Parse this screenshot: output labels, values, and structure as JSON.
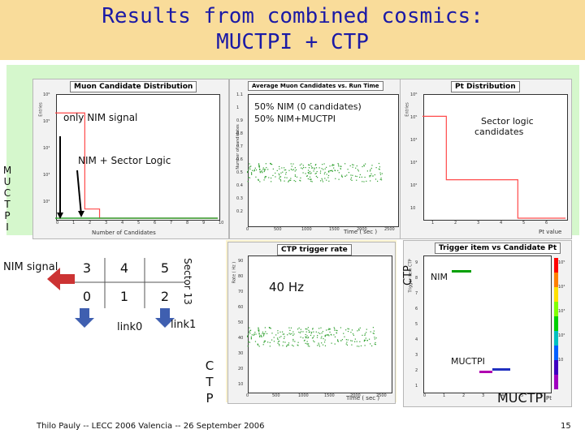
{
  "slide": {
    "title_line1": "Results from combined cosmics:",
    "title_line2": "MUCTPI + CTP",
    "footer": "Thilo Pauly -- LECC 2006 Valencia -- 26 September 2006",
    "page_number": "15"
  },
  "annotations": {
    "only_nim_signal": "only NIM signal",
    "nim_sector_logic": "NIM + Sector Logic",
    "muctpi_vertical": [
      "M",
      "U",
      "C",
      "T",
      "P",
      "I"
    ],
    "nim_signal": "NIM signal",
    "legend_line1": "50% NIM (0 candidates)",
    "legend_line2": "50% NIM+MUCTPI",
    "sector_logic_candidates_line1": "Sector logic",
    "sector_logic_candidates_line2": "candidates",
    "ctp_vertical": [
      "C",
      "T",
      "P"
    ],
    "ctp_rot": "CTP",
    "rate_40hz": "40 Hz",
    "nim": "NIM",
    "muctpi_small": "MUCTPI",
    "muctpi_big": "MUCTPI",
    "sector13": "Sector 13",
    "link0": "link0",
    "link1": "link1"
  },
  "sector_grid": {
    "top_row": [
      "3",
      "4",
      "5"
    ],
    "bottom_row": [
      "0",
      "1",
      "2"
    ]
  },
  "colors": {
    "title_band": "#f9dc9a",
    "title_text": "#1b1aa6",
    "green_area": "#d5f7cc",
    "yellow_area": "#fbf3d0",
    "arrow_red": "#cc3333",
    "arrow_blue": "#3f5fb0",
    "histogram": "#ff4a4a",
    "scatter": "#2fa02f"
  },
  "panels": {
    "muon_dist": {
      "title": "Muon Candidate Distribution",
      "ylabel": "Entries",
      "xlabel": "Number of Candidates",
      "xticks": [
        "0",
        "1",
        "2",
        "3",
        "4",
        "5",
        "6",
        "7",
        "8",
        "9",
        "10"
      ],
      "yticks": [
        "10⁶",
        "10⁵",
        "10⁴",
        "10³",
        "10²"
      ]
    },
    "avg_muon": {
      "title": "Average Muon Candidates vs. Run Time",
      "ylabel": "Number of candidates",
      "xlabel": "Time  ( sec )",
      "xticks": [
        "0",
        "500",
        "1000",
        "1500",
        "2000",
        "2500"
      ],
      "yticks": [
        "1.1",
        "1",
        "0.9",
        "0.8",
        "0.7",
        "0.6",
        "0.5",
        "0.4",
        "0.3",
        "0.2"
      ]
    },
    "pt_dist": {
      "title": "Pt Distribution",
      "ylabel": "Entries",
      "xlabel": "Pt value",
      "xticks": [
        "1",
        "2",
        "3",
        "4",
        "5",
        "6"
      ],
      "yticks": [
        "10⁶",
        "10⁵",
        "10⁴",
        "10³",
        "10²",
        "10"
      ]
    },
    "ctp_rate": {
      "title": "CTP trigger rate",
      "ylabel": "Rate ( Hz )",
      "xlabel": "Time  ( sec )",
      "xticks": [
        "0",
        "500",
        "1000",
        "1500",
        "2000",
        "2500"
      ],
      "yticks": [
        "90",
        "80",
        "70",
        "60",
        "50",
        "40",
        "30",
        "20",
        "10"
      ]
    },
    "trigger_item": {
      "title": "Trigger item vs Candidate Pt",
      "ylabel": "Trigger item CTP",
      "xlabel": "Pt",
      "xticks": [
        "0",
        "1",
        "2",
        "3",
        "4",
        "5",
        "6"
      ],
      "yticks": [
        "9",
        "8",
        "7",
        "6",
        "5",
        "4",
        "3",
        "2",
        "1"
      ],
      "zticks": [
        "10⁵",
        "10⁴",
        "10³",
        "10²",
        "10"
      ]
    }
  },
  "chart_data": [
    {
      "type": "bar",
      "title": "Muon Candidate Distribution",
      "xlabel": "Number of Candidates",
      "ylabel": "Entries",
      "categories": [
        "0",
        "1",
        "2",
        "3",
        "4",
        "5",
        "6",
        "7",
        "8",
        "9",
        "10"
      ],
      "values": [
        300000,
        300000,
        3,
        0,
        0,
        0,
        0,
        0,
        0,
        0,
        0
      ],
      "yscale": "log"
    },
    {
      "type": "scatter",
      "title": "Average Muon Candidates vs. Run Time",
      "xlabel": "Time  ( sec )",
      "ylabel": "Number of candidates",
      "series": [
        {
          "x": [
            0,
            2500
          ],
          "y": [
            0.5,
            0.5
          ]
        }
      ],
      "xlim": [
        0,
        2700
      ],
      "ylim": [
        0.1,
        1.1
      ]
    },
    {
      "type": "bar",
      "title": "Pt Distribution",
      "xlabel": "Pt value",
      "ylabel": "Entries",
      "categories": [
        "1",
        "2",
        "3",
        "4",
        "5",
        "6"
      ],
      "values": [
        200000,
        100,
        100,
        100,
        0,
        0
      ],
      "yscale": "log"
    },
    {
      "type": "scatter",
      "title": "CTP trigger rate",
      "xlabel": "Time  ( sec )",
      "ylabel": "Rate ( Hz )",
      "series": [
        {
          "x": [
            0,
            2500
          ],
          "y": [
            40,
            40
          ]
        }
      ],
      "xlim": [
        0,
        2700
      ],
      "ylim": [
        0,
        100
      ]
    },
    {
      "type": "heatmap",
      "title": "Trigger item vs Candidate Pt",
      "xlabel": "Pt",
      "ylabel": "Trigger item CTP",
      "x": [
        "0",
        "1",
        "2",
        "3",
        "4",
        "5",
        "6"
      ],
      "y": [
        "1",
        "2",
        "3",
        "4",
        "5",
        "6",
        "7",
        "8",
        "9"
      ]
    }
  ]
}
